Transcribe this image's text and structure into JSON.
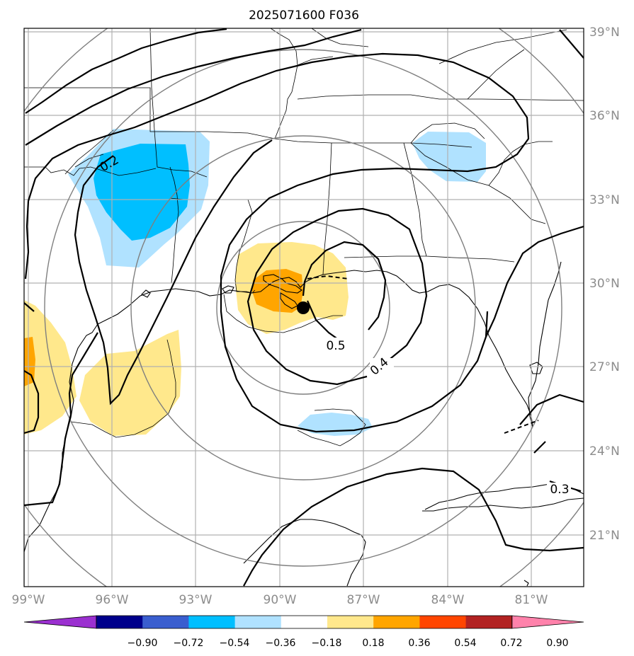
{
  "title": "2025071600 F036",
  "map": {
    "lon_ticks": [
      "99°W",
      "96°W",
      "93°W",
      "90°W",
      "87°W",
      "84°W",
      "81°W"
    ],
    "lat_ticks": [
      "39°N",
      "36°N",
      "33°N",
      "30°N",
      "27°N",
      "24°N",
      "21°N"
    ],
    "contour_labels": [
      "0.2",
      "0.5",
      "0.4",
      "0.3"
    ],
    "storm_center": "filled-circle-marker"
  },
  "colorbar": {
    "ticks": [
      "−0.90",
      "−0.72",
      "−0.54",
      "−0.36",
      "−0.18",
      "0.18",
      "0.36",
      "0.54",
      "0.72",
      "0.90"
    ],
    "colors": [
      "#9b30d0",
      "#00008b",
      "#3a5ecf",
      "#00bfff",
      "#b0e2ff",
      "#ffffff",
      "#ffe88c",
      "#ffa500",
      "#ff4500",
      "#b22222",
      "#ff82ab"
    ]
  },
  "colors": {
    "frame": "#000000",
    "grid": "#b0b0b0",
    "tick_text": "#8c8c8c",
    "range_rings": "#7f7f7f"
  }
}
